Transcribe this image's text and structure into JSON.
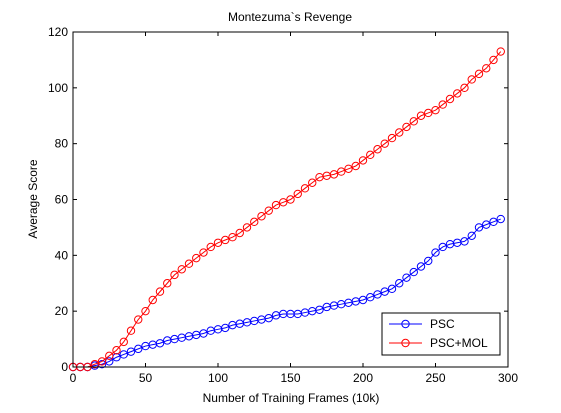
{
  "chart_data": {
    "type": "line",
    "title": "Montezuma`s Revenge",
    "xlabel": "Number of Training Frames (10k)",
    "ylabel": "Average Score",
    "xlim": [
      0,
      300
    ],
    "ylim": [
      0,
      120
    ],
    "xticks": [
      0,
      50,
      100,
      150,
      200,
      250,
      300
    ],
    "yticks": [
      0,
      20,
      40,
      60,
      80,
      100,
      120
    ],
    "grid": false,
    "legend_position": "bottom-right",
    "x": [
      0,
      5,
      10,
      15,
      20,
      25,
      30,
      35,
      40,
      45,
      50,
      55,
      60,
      65,
      70,
      75,
      80,
      85,
      90,
      95,
      100,
      105,
      110,
      115,
      120,
      125,
      130,
      135,
      140,
      145,
      150,
      155,
      160,
      165,
      170,
      175,
      180,
      185,
      190,
      195,
      200,
      205,
      210,
      215,
      220,
      225,
      230,
      235,
      240,
      245,
      250,
      255,
      260,
      265,
      270,
      275,
      280,
      285,
      290,
      295
    ],
    "series": [
      {
        "name": "PSC",
        "color": "#0000ff",
        "marker": "circle",
        "values": [
          0,
          0,
          0,
          0.5,
          1,
          2,
          3.5,
          4.5,
          5.5,
          6.5,
          7.5,
          8,
          8.5,
          9.5,
          10,
          10.5,
          11,
          11.5,
          12,
          13,
          13.5,
          14,
          15,
          15.5,
          16,
          16.5,
          17,
          17.5,
          18.5,
          19,
          19,
          19,
          19.5,
          20,
          20.5,
          21.5,
          22,
          22.5,
          23,
          23.5,
          24,
          25,
          26,
          27,
          28,
          30,
          32,
          34,
          36,
          38,
          41,
          43,
          44,
          44.5,
          45,
          47,
          50,
          51,
          52,
          53
        ]
      },
      {
        "name": "PSC+MOL",
        "color": "#ff0000",
        "marker": "circle",
        "values": [
          0,
          0,
          0,
          1,
          2,
          4,
          6,
          9,
          13,
          17,
          20,
          24,
          27,
          30,
          33,
          35,
          37,
          39,
          41,
          43,
          44.5,
          45.5,
          46.5,
          48,
          50,
          52,
          54,
          56,
          58,
          59,
          60,
          62,
          64,
          66,
          68,
          68.5,
          69,
          70,
          71,
          72,
          74,
          76,
          78,
          80,
          82,
          84,
          86,
          88,
          90,
          91,
          92,
          94,
          96,
          98,
          100,
          103,
          105,
          107,
          110,
          113
        ]
      }
    ]
  }
}
